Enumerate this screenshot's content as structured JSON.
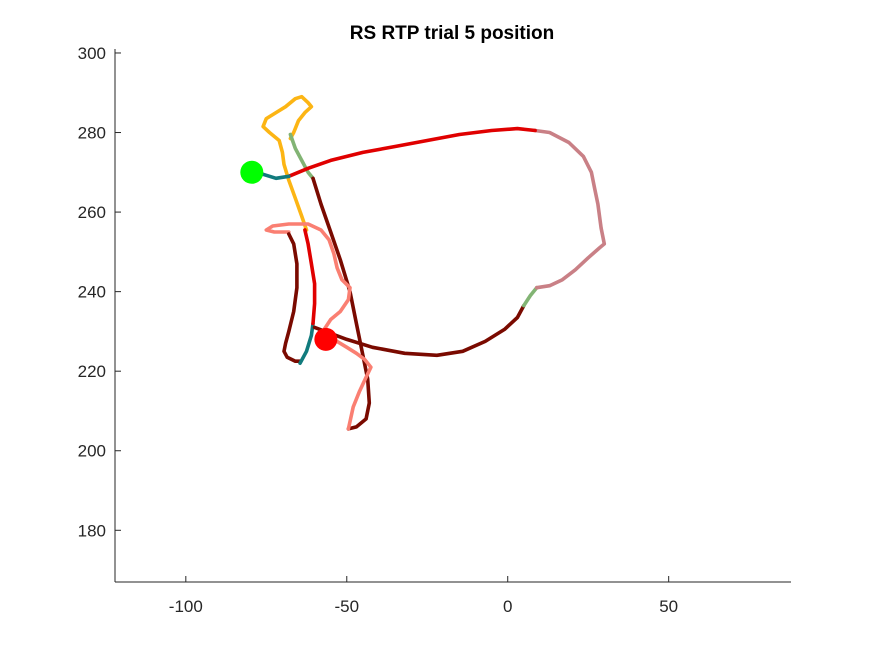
{
  "chart_data": {
    "type": "line",
    "title": "RS  RTP trial 5 position",
    "xlabel": "",
    "ylabel": "",
    "xlim": [
      -122,
      88
    ],
    "ylim": [
      167,
      301
    ],
    "xticks": [
      -100,
      -50,
      0,
      50
    ],
    "yticks": [
      180,
      200,
      220,
      240,
      260,
      280,
      300
    ],
    "xtick_labels": [
      "-100",
      "-50",
      "0",
      "50"
    ],
    "ytick_labels": [
      "180",
      "200",
      "220",
      "240",
      "260",
      "280",
      "300"
    ],
    "grid": false,
    "legend": "none",
    "series": [
      {
        "color": "#fcb514",
        "points": [
          [
            -62.5,
            255.5
          ],
          [
            -64,
            259
          ],
          [
            -66,
            263.5
          ],
          [
            -68,
            268
          ],
          [
            -69.5,
            272
          ],
          [
            -70,
            275
          ],
          [
            -71,
            278
          ],
          [
            -74,
            280
          ],
          [
            -76,
            281.5
          ],
          [
            -75,
            283.5
          ],
          [
            -72,
            285
          ],
          [
            -69,
            286.5
          ],
          [
            -66,
            288.5
          ],
          [
            -64,
            289
          ],
          [
            -62,
            287.5
          ],
          [
            -61,
            286.5
          ],
          [
            -63,
            285
          ],
          [
            -65,
            283
          ],
          [
            -66.5,
            280
          ],
          [
            -67.5,
            278.5
          ]
        ]
      },
      {
        "color": "#82b474",
        "points": [
          [
            -67.5,
            279.5
          ],
          [
            -66,
            276
          ],
          [
            -64,
            273
          ],
          [
            -62,
            270
          ],
          [
            -60.5,
            268.5
          ]
        ]
      },
      {
        "color": "#7a0a00",
        "points": [
          [
            -60.5,
            268.5
          ],
          [
            -58,
            262
          ],
          [
            -55,
            255
          ],
          [
            -52,
            248
          ],
          [
            -49,
            240
          ],
          [
            -47,
            232
          ],
          [
            -45,
            224
          ],
          [
            -43.5,
            218
          ],
          [
            -43,
            212
          ],
          [
            -44,
            208
          ],
          [
            -47,
            206
          ],
          [
            -49.5,
            205.5
          ]
        ]
      },
      {
        "color": "#fa7f72",
        "points": [
          [
            -49.5,
            205.5
          ],
          [
            -48,
            211
          ],
          [
            -46,
            215
          ],
          [
            -44,
            218.5
          ],
          [
            -42.5,
            221
          ],
          [
            -44.5,
            223
          ],
          [
            -47,
            224.5
          ],
          [
            -50,
            226
          ],
          [
            -53,
            227.5
          ],
          [
            -55.5,
            229
          ],
          [
            -57,
            230.5
          ],
          [
            -55,
            233
          ],
          [
            -52,
            235
          ],
          [
            -49.5,
            238
          ],
          [
            -49,
            241
          ],
          [
            -51.5,
            243
          ],
          [
            -53,
            246
          ],
          [
            -54,
            249.5
          ],
          [
            -55.5,
            253
          ],
          [
            -58,
            255.5
          ],
          [
            -62,
            257
          ],
          [
            -68,
            257
          ],
          [
            -73,
            256.5
          ],
          [
            -75,
            255.5
          ],
          [
            -72.5,
            255
          ],
          [
            -68,
            255
          ]
        ]
      },
      {
        "color": "#7a0a00",
        "points": [
          [
            -68,
            254.5
          ],
          [
            -66.5,
            252
          ],
          [
            -65.5,
            247
          ],
          [
            -65.5,
            241
          ],
          [
            -66.5,
            235
          ],
          [
            -68,
            230
          ],
          [
            -69,
            227
          ],
          [
            -69.5,
            225
          ],
          [
            -68.5,
            223.5
          ],
          [
            -66,
            222.5
          ],
          [
            -64.5,
            222.5
          ]
        ]
      },
      {
        "color": "#117b7d",
        "points": [
          [
            -64.5,
            222
          ],
          [
            -62.5,
            225
          ],
          [
            -61,
            229
          ],
          [
            -60.5,
            232
          ]
        ]
      },
      {
        "color": "#e00000",
        "points": [
          [
            -60.5,
            232
          ],
          [
            -60,
            237
          ],
          [
            -60,
            242
          ],
          [
            -61,
            247
          ],
          [
            -62,
            252
          ],
          [
            -63,
            255.5
          ]
        ]
      },
      {
        "color": "#7a0a00",
        "points": [
          [
            -60,
            231
          ],
          [
            -55,
            229.5
          ],
          [
            -50,
            228
          ],
          [
            -42,
            226
          ],
          [
            -32,
            224.5
          ],
          [
            -22,
            224
          ],
          [
            -14,
            225
          ],
          [
            -7,
            227.5
          ],
          [
            -1,
            230.5
          ],
          [
            3,
            233.5
          ],
          [
            5,
            236.5
          ]
        ]
      },
      {
        "color": "#82b474",
        "points": [
          [
            5,
            236.5
          ],
          [
            7,
            239
          ],
          [
            9,
            241
          ]
        ]
      },
      {
        "color": "#c98086",
        "points": [
          [
            9,
            241
          ],
          [
            13,
            241.5
          ],
          [
            17,
            243
          ],
          [
            21,
            245.5
          ],
          [
            25,
            248.5
          ],
          [
            28.5,
            251
          ],
          [
            30,
            252
          ],
          [
            29,
            256
          ],
          [
            28,
            262
          ],
          [
            27,
            266
          ],
          [
            26,
            270
          ],
          [
            23.5,
            274
          ],
          [
            19,
            277.5
          ],
          [
            13,
            280
          ],
          [
            8.5,
            280.5
          ]
        ]
      },
      {
        "color": "#e00000",
        "points": [
          [
            8.5,
            280.5
          ],
          [
            3,
            281
          ],
          [
            -5,
            280.5
          ],
          [
            -15,
            279.5
          ],
          [
            -25,
            278
          ],
          [
            -35,
            276.5
          ],
          [
            -45,
            275
          ],
          [
            -55,
            273
          ],
          [
            -62,
            271
          ],
          [
            -68,
            269
          ]
        ]
      },
      {
        "color": "#117b7d",
        "points": [
          [
            -68,
            269
          ],
          [
            -72,
            268.5
          ],
          [
            -76,
            269.5
          ],
          [
            -79,
            270
          ]
        ]
      }
    ],
    "markers": [
      {
        "x": -79.5,
        "y": 270,
        "color": "#00ff00"
      },
      {
        "x": -56.5,
        "y": 228,
        "color": "#ff0000"
      }
    ]
  }
}
